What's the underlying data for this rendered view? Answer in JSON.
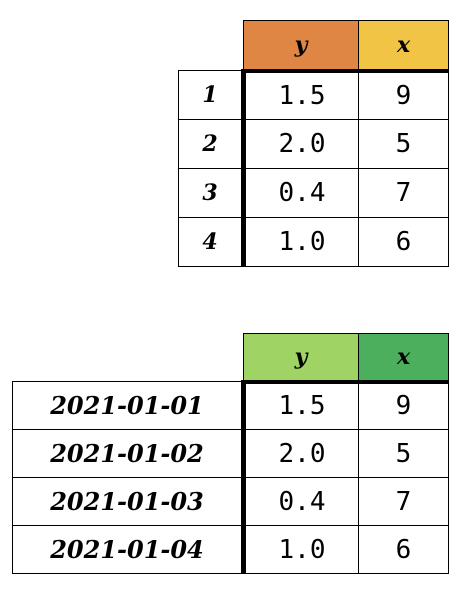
{
  "table1": {
    "header_colors": [
      "#e08645",
      "#f2c446"
    ],
    "columns": [
      "y",
      "x"
    ],
    "rows": [
      {
        "index": "1",
        "y": "1.5",
        "x": "9"
      },
      {
        "index": "2",
        "y": "2.0",
        "x": "5"
      },
      {
        "index": "3",
        "y": "0.4",
        "x": "7"
      },
      {
        "index": "4",
        "y": "1.0",
        "x": "6"
      }
    ]
  },
  "table2": {
    "header_colors": [
      "#9fd363",
      "#4caf5e"
    ],
    "columns": [
      "y",
      "x"
    ],
    "rows": [
      {
        "index": "2021-01-01",
        "y": "1.5",
        "x": "9"
      },
      {
        "index": "2021-01-02",
        "y": "2.0",
        "x": "5"
      },
      {
        "index": "2021-01-03",
        "y": "0.4",
        "x": "7"
      },
      {
        "index": "2021-01-04",
        "y": "1.0",
        "x": "6"
      }
    ]
  }
}
